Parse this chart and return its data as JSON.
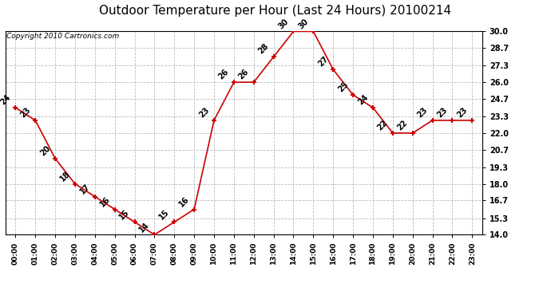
{
  "title": "Outdoor Temperature per Hour (Last 24 Hours) 20100214",
  "copyright": "Copyright 2010 Cartronics.com",
  "hours": [
    "00:00",
    "01:00",
    "02:00",
    "03:00",
    "04:00",
    "05:00",
    "06:00",
    "07:00",
    "08:00",
    "09:00",
    "10:00",
    "11:00",
    "12:00",
    "13:00",
    "14:00",
    "15:00",
    "16:00",
    "17:00",
    "18:00",
    "19:00",
    "20:00",
    "21:00",
    "22:00",
    "23:00"
  ],
  "values": [
    24,
    23,
    20,
    18,
    17,
    16,
    15,
    14,
    15,
    16,
    23,
    26,
    26,
    28,
    30,
    30,
    27,
    25,
    24,
    22,
    22,
    23,
    23,
    23
  ],
  "ylim": [
    14.0,
    30.0
  ],
  "yticks": [
    14.0,
    15.3,
    16.7,
    18.0,
    19.3,
    20.7,
    22.0,
    23.3,
    24.7,
    26.0,
    27.3,
    28.7,
    30.0
  ],
  "ytick_labels": [
    "14.0",
    "15.3",
    "16.7",
    "18.0",
    "19.3",
    "20.7",
    "22.0",
    "23.3",
    "24.7",
    "26.0",
    "27.3",
    "28.7",
    "30.0"
  ],
  "line_color": "#cc0000",
  "marker_color": "#cc0000",
  "bg_color": "#ffffff",
  "grid_color": "#bbbbbb",
  "title_fontsize": 11,
  "tick_fontsize": 6.5,
  "label_fontsize": 7,
  "copyright_fontsize": 6.5
}
